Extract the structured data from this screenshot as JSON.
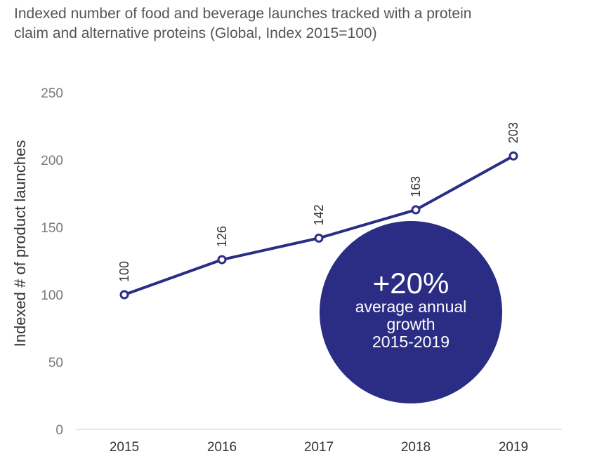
{
  "chart_data": {
    "type": "line",
    "title": "Indexed number of food and beverage launches tracked with a protein claim and alternative proteins (Global, Index 2015=100)",
    "title_lines": [
      "Indexed number of food and beverage launches tracked with a protein",
      "claim and alternative proteins (Global, Index 2015=100)"
    ],
    "ylabel": "Indexed # of product launches",
    "xlabel": "",
    "categories": [
      "2015",
      "2016",
      "2017",
      "2018",
      "2019"
    ],
    "values": [
      100,
      126,
      142,
      163,
      203
    ],
    "ylim": [
      0,
      250
    ],
    "yticks": [
      0,
      50,
      100,
      150,
      200,
      250
    ],
    "grid": false,
    "colors": {
      "line": "#2b2d85",
      "bubble": "#2b2d85",
      "marker_fill": "#ffffff"
    },
    "annotation": {
      "headline": "+20%",
      "lines": [
        "average annual",
        "growth",
        "2015-2019"
      ]
    }
  }
}
